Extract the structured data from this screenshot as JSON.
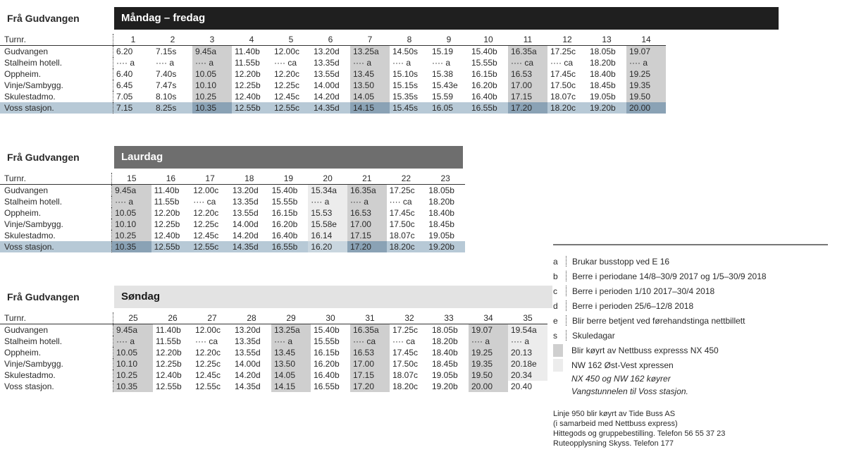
{
  "weekday": {
    "from": "Frå Gudvangen",
    "days": "Måndag – fredag",
    "header_label": "Turnr.",
    "header": [
      "1",
      "2",
      "3",
      "4",
      "5",
      "6",
      "7",
      "8",
      "9",
      "10",
      "11",
      "12",
      "13",
      "14"
    ],
    "highlight": [
      2,
      6,
      10,
      13
    ],
    "rows": [
      {
        "stop": "Gudvangen",
        "t": [
          "6.20",
          "7.15s",
          "9.45a",
          "11.40b",
          "12.00c",
          "13.20d",
          "13.25a",
          "14.50s",
          "15.19",
          "15.40b",
          "16.35a",
          "17.25c",
          "18.05b",
          "19.07"
        ]
      },
      {
        "stop": "Stalheim hotell.",
        "t": [
          "···· a",
          "···· a",
          "···· a",
          "11.55b",
          "···· ca",
          "13.35d",
          "···· a",
          "···· a",
          "···· a",
          "15.55b",
          "···· ca",
          "···· ca",
          "18.20b",
          "···· a"
        ]
      },
      {
        "stop": "Oppheim.",
        "t": [
          "6.40",
          "7.40s",
          "10.05",
          "12.20b",
          "12.20c",
          "13.55d",
          "13.45",
          "15.10s",
          "15.38",
          "16.15b",
          "16.53",
          "17.45c",
          "18.40b",
          "19.25"
        ]
      },
      {
        "stop": "Vinje/Sambygg.",
        "t": [
          "6.45",
          "7.47s",
          "10.10",
          "12.25b",
          "12.25c",
          "14.00d",
          "13.50",
          "15.15s",
          "15.43e",
          "16.20b",
          "17.00",
          "17.50c",
          "18.45b",
          "19.35"
        ]
      },
      {
        "stop": "Skulestadmo.",
        "t": [
          "7.05",
          "8.10s",
          "10.25",
          "12.40b",
          "12.45c",
          "14.20d",
          "14.05",
          "15.35s",
          "15.59",
          "16.40b",
          "17.15",
          "18.07c",
          "19.05b",
          "19.50"
        ]
      },
      {
        "stop": "Voss stasjon.",
        "t": [
          "7.15",
          "8.25s",
          "10.35",
          "12.55b",
          "12.55c",
          "14.35d",
          "14.15",
          "15.45s",
          "16.05",
          "16.55b",
          "17.20",
          "18.20c",
          "19.20b",
          "20.00"
        ]
      }
    ]
  },
  "saturday": {
    "from": "Frå Gudvangen",
    "days": "Laurdag",
    "header_label": "Turnr.",
    "header": [
      "15",
      "16",
      "17",
      "18",
      "19",
      "20",
      "21",
      "22",
      "23"
    ],
    "highlight": [
      0,
      6
    ],
    "light": [
      5
    ],
    "rows": [
      {
        "stop": "Gudvangen",
        "t": [
          "9.45a",
          "11.40b",
          "12.00c",
          "13.20d",
          "15.40b",
          "15.34a",
          "16.35a",
          "17.25c",
          "18.05b"
        ]
      },
      {
        "stop": "Stalheim hotell.",
        "t": [
          "···· a",
          "11.55b",
          "···· ca",
          "13.35d",
          "15.55b",
          "···· a",
          "···· a",
          "···· ca",
          "18.20b"
        ]
      },
      {
        "stop": "Oppheim.",
        "t": [
          "10.05",
          "12.20b",
          "12.20c",
          "13.55d",
          "16.15b",
          "15.53",
          "16.53",
          "17.45c",
          "18.40b"
        ]
      },
      {
        "stop": "Vinje/Sambygg.",
        "t": [
          "10.10",
          "12.25b",
          "12.25c",
          "14.00d",
          "16.20b",
          "15.58e",
          "17.00",
          "17.50c",
          "18.45b"
        ]
      },
      {
        "stop": "Skulestadmo.",
        "t": [
          "10.25",
          "12.40b",
          "12.45c",
          "14.20d",
          "16.40b",
          "16.14",
          "17.15",
          "18.07c",
          "19.05b"
        ]
      },
      {
        "stop": "Voss stasjon.",
        "t": [
          "10.35",
          "12.55b",
          "12.55c",
          "14.35d",
          "16.55b",
          "16.20",
          "17.20",
          "18.20c",
          "19.20b"
        ]
      }
    ]
  },
  "sunday": {
    "from": "Frå Gudvangen",
    "days": "Søndag",
    "header_label": "Turnr.",
    "header": [
      "25",
      "26",
      "27",
      "28",
      "29",
      "30",
      "31",
      "32",
      "33",
      "34",
      "35"
    ],
    "highlight": [
      0,
      4,
      6,
      9
    ],
    "light": [
      10
    ],
    "rows": [
      {
        "stop": "Gudvangen",
        "t": [
          "9.45a",
          "11.40b",
          "12.00c",
          "13.20d",
          "13.25a",
          "15.40b",
          "16.35a",
          "17.25c",
          "18.05b",
          "19.07",
          "19.54a"
        ]
      },
      {
        "stop": "Stalheim hotell.",
        "t": [
          "···· a",
          "11.55b",
          "···· ca",
          "13.35d",
          "···· a",
          "15.55b",
          "···· ca",
          "···· ca",
          "18.20b",
          "···· a",
          "···· a"
        ]
      },
      {
        "stop": "Oppheim.",
        "t": [
          "10.05",
          "12.20b",
          "12.20c",
          "13.55d",
          "13.45",
          "16.15b",
          "16.53",
          "17.45c",
          "18.40b",
          "19.25",
          "20.13"
        ]
      },
      {
        "stop": "Vinje/Sambygg.",
        "t": [
          "10.10",
          "12.25b",
          "12.25c",
          "14.00d",
          "13.50",
          "16.20b",
          "17.00",
          "17.50c",
          "18.45b",
          "19.35",
          "20.18e"
        ]
      },
      {
        "stop": "Skulestadmo.",
        "t": [
          "10.25",
          "12.40b",
          "12.45c",
          "14.20d",
          "14.05",
          "16.40b",
          "17.15",
          "18.07c",
          "19.05b",
          "19.50",
          "20.34"
        ]
      },
      {
        "stop": "Voss stasjon.",
        "t": [
          "10.35",
          "12.55b",
          "12.55c",
          "14.35d",
          "14.15",
          "16.55b",
          "17.20",
          "18.20c",
          "19.20b",
          "20.00",
          "20.40"
        ]
      }
    ]
  },
  "legend": {
    "items": [
      {
        "key": "a",
        "text": "Brukar busstopp ved E 16"
      },
      {
        "key": "b",
        "text": "Berre i periodane 14/8–30/9 2017 og 1/5–30/9 2018"
      },
      {
        "key": "c",
        "text": "Berre i perioden 1/10 2017–30/4 2018"
      },
      {
        "key": "d",
        "text": "Berre i perioden 25/6–12/8 2018"
      },
      {
        "key": "e",
        "text": "Blir berre betjent ved førehandstinga nettbillett"
      },
      {
        "key": "s",
        "text": "Skuledagar"
      }
    ],
    "swatches": [
      {
        "color": "#cfcfcf",
        "text": "Blir køyrt av Nettbuss expresss NX 450"
      },
      {
        "color": "#ececec",
        "text": "NW 162 Øst-Vest xpressen"
      }
    ],
    "note1": "NX 450 og NW 162 køyrer",
    "note2": "Vangstunnelen til Voss stasjon.",
    "info": [
      "Linje 950 blir køyrt av Tide Buss AS",
      "(i samarbeid med Nettbuss express)",
      "Hittegods og gruppebestilling. Telefon  56 55 37 23",
      "Ruteopplysning Skyss. Telefon 177"
    ]
  }
}
